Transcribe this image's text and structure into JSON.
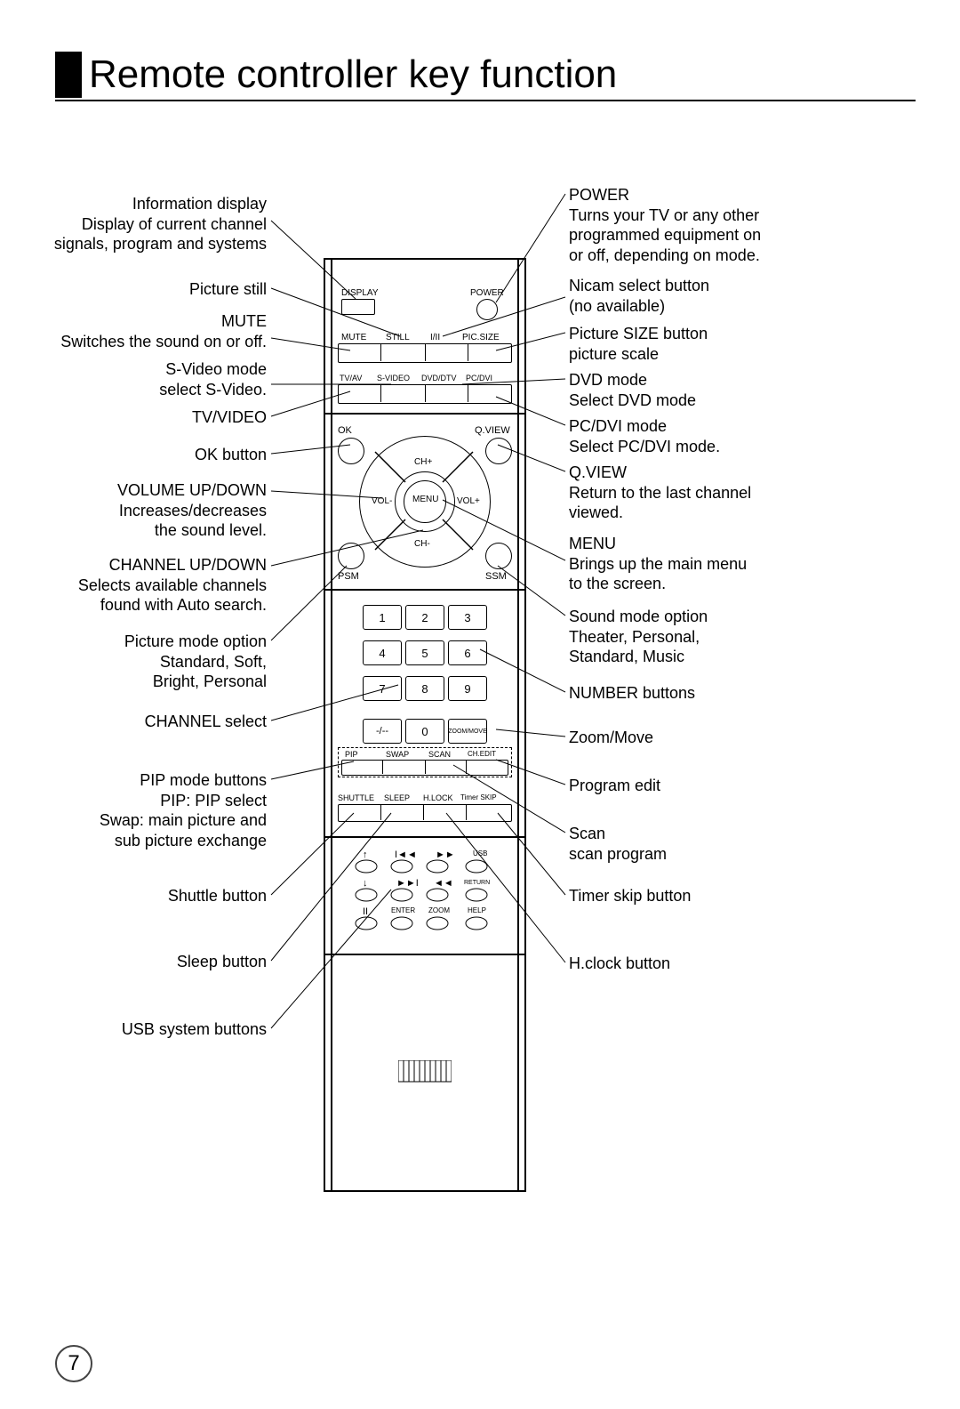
{
  "page": {
    "title": "Remote controller key function",
    "number": "7"
  },
  "remote": {
    "row1": {
      "display": "DISPLAY",
      "power": "POWER"
    },
    "row2": {
      "mute": "MUTE",
      "still": "STILL",
      "iii": "I/II",
      "picsize": "PIC.SIZE"
    },
    "row3": {
      "tvav": "TV/AV",
      "svideo": "S-VIDEO",
      "dvddtv": "DVD/DTV",
      "pcdvi": "PC/DVI"
    },
    "nav": {
      "ok": "OK",
      "qview": "Q.VIEW",
      "chp": "CH+",
      "chm": "CH-",
      "volp": "VOL+",
      "volm": "VOL-",
      "menu": "MENU",
      "psm": "PSM",
      "ssm": "SSM"
    },
    "numpad": {
      "1": "1",
      "2": "2",
      "3": "3",
      "4": "4",
      "5": "5",
      "6": "6",
      "7": "7",
      "8": "8",
      "9": "9",
      "dash": "-/--",
      "0": "0",
      "zoom": "ZOOM/MOVE"
    },
    "row_pip": {
      "pip": "PIP",
      "swap": "SWAP",
      "scan": "SCAN",
      "chedit": "CH.EDIT"
    },
    "row_shuttle": {
      "shuttle": "SHUTTLE",
      "sleep": "SLEEP",
      "hlock": "H.LOCK",
      "timerskip": "Timer SKIP"
    },
    "usb": {
      "usb": "USB",
      "return": "RETURN",
      "enter": "ENTER",
      "zoom": "ZOOM",
      "help": "HELP"
    }
  },
  "left_callouts": {
    "info": "Information display\nDisplay of current channel\nsignals, program and systems",
    "still": "Picture still",
    "mute": "MUTE\nSwitches the sound on or off.",
    "svideo": "S-Video mode\nselect  S-Video.",
    "tvvideo": "TV/VIDEO",
    "ok": "OK button",
    "vol": "VOLUME UP/DOWN\nIncreases/decreases\nthe sound level.",
    "ch": "CHANNEL UP/DOWN\nSelects available channels\nfound with Auto search.",
    "picmode": "Picture mode option\nStandard, Soft,\nBright, Personal",
    "chselect": "CHANNEL  select",
    "pip": "PIP mode buttons\nPIP: PIP select\nSwap: main picture and\nsub picture exchange",
    "shuttle": "Shuttle button",
    "sleep": "Sleep button",
    "usb": "USB system buttons"
  },
  "right_callouts": {
    "power": "POWER\nTurns your TV or any other\nprogrammed equipment on\nor off, depending on mode.",
    "nicam": "Nicam select button\n(no available)",
    "picsize": "Picture SIZE button\npicture scale",
    "dvd": "DVD mode\nSelect DVD mode",
    "pcdvi": "PC/DVI mode\nSelect PC/DVI mode.",
    "qview": "Q.VIEW\nReturn to the last channel\nviewed.",
    "menu": "MENU\nBrings up the main menu\nto the screen.",
    "sound": "Sound mode option\nTheater, Personal,\nStandard, Music",
    "number": "NUMBER buttons",
    "zoommove": "Zoom/Move",
    "progedit": "Program edit",
    "scan": "Scan\nscan program",
    "timerskip": "Timer skip button",
    "hclock": "H.clock  button"
  }
}
